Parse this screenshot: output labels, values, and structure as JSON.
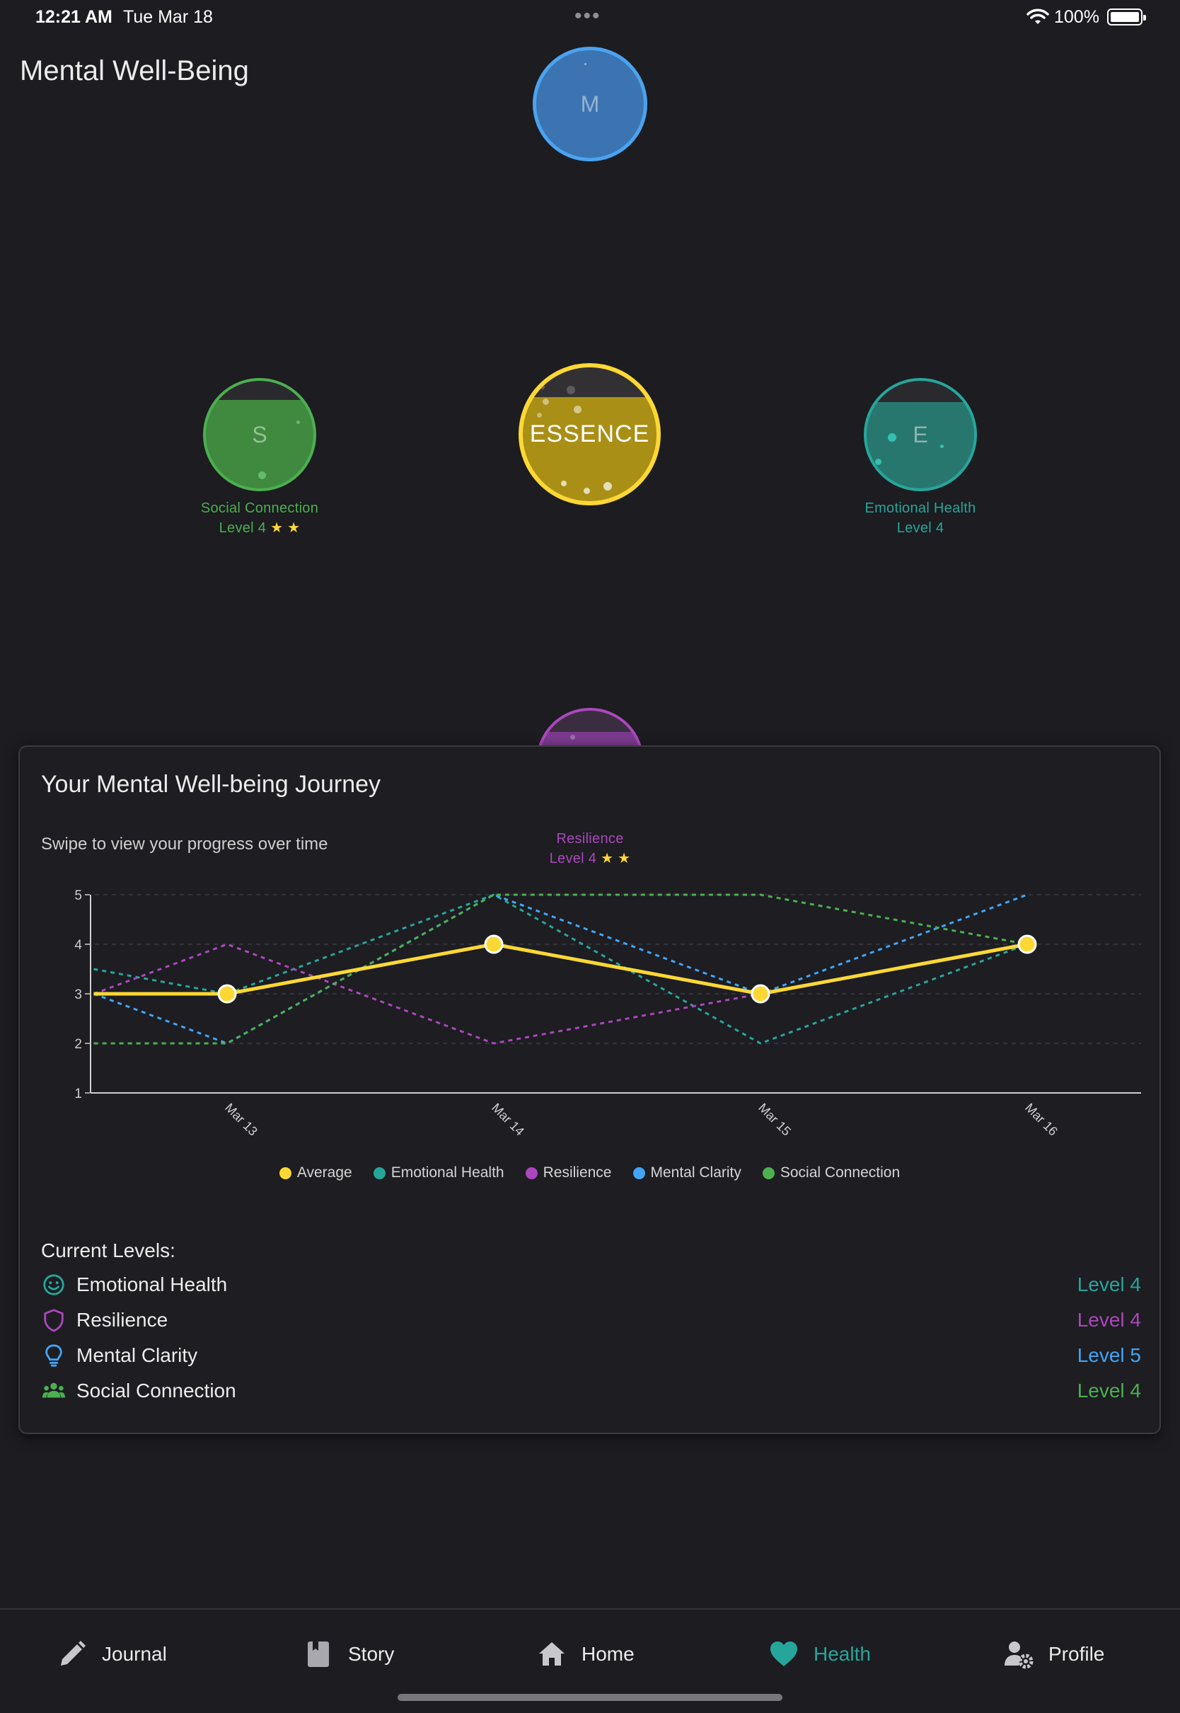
{
  "status_bar": {
    "time": "12:21 AM",
    "date": "Tue Mar 18",
    "battery": "100%"
  },
  "page_title": "Mental Well-Being",
  "orbs": {
    "mental": {
      "letter": "M"
    },
    "social": {
      "letter": "S",
      "name": "Social Connection",
      "level": "Level 4",
      "stars": "★ ★"
    },
    "essence": {
      "letter": "ESSENCE"
    },
    "emotional": {
      "letter": "E",
      "name": "Emotional Health",
      "level": "Level 4"
    },
    "resilience": {
      "name": "Resilience",
      "level": "Level 4",
      "stars": "★ ★"
    }
  },
  "card": {
    "title": "Your Mental Well-being Journey",
    "subtitle": "Swipe to view your progress over time"
  },
  "chart_data": {
    "type": "line",
    "x": [
      "Mar 13",
      "Mar 14",
      "Mar 15",
      "Mar 16"
    ],
    "ylim": [
      1,
      5
    ],
    "yticks": [
      "1",
      "2",
      "3",
      "4",
      "5"
    ],
    "grid": true,
    "legend_position": "bottom",
    "series": [
      {
        "name": "Emotional Health",
        "color": "#26a69a",
        "style": "dashed",
        "points": [
          [
            -0.5,
            3.5
          ],
          [
            0,
            3
          ],
          [
            1,
            5
          ],
          [
            2,
            2
          ],
          [
            3,
            4
          ]
        ]
      },
      {
        "name": "Resilience",
        "color": "#ab47bc",
        "style": "dashed",
        "points": [
          [
            -0.5,
            3
          ],
          [
            0,
            4
          ],
          [
            1,
            2
          ],
          [
            2,
            3
          ],
          [
            3,
            4
          ]
        ]
      },
      {
        "name": "Mental Clarity",
        "color": "#42a5f5",
        "style": "dashed",
        "points": [
          [
            -0.5,
            3
          ],
          [
            0,
            2
          ],
          [
            1,
            5
          ],
          [
            2,
            3
          ],
          [
            3,
            5
          ]
        ]
      },
      {
        "name": "Social Connection",
        "color": "#4caf50",
        "style": "dashed",
        "points": [
          [
            -0.5,
            2
          ],
          [
            0,
            2
          ],
          [
            1,
            5
          ],
          [
            2,
            5
          ],
          [
            3,
            4
          ]
        ]
      },
      {
        "name": "Average",
        "color": "#fdd835",
        "style": "solid",
        "points": [
          [
            -0.5,
            3
          ],
          [
            0,
            3
          ],
          [
            1,
            4
          ],
          [
            2,
            3
          ],
          [
            3,
            4
          ]
        ]
      }
    ],
    "legend": [
      {
        "name": "Average",
        "color": "#fdd835"
      },
      {
        "name": "Emotional Health",
        "color": "#26a69a"
      },
      {
        "name": "Resilience",
        "color": "#ab47bc"
      },
      {
        "name": "Mental Clarity",
        "color": "#42a5f5"
      },
      {
        "name": "Social Connection",
        "color": "#4caf50"
      }
    ]
  },
  "levels": {
    "title": "Current Levels:",
    "items": [
      {
        "name": "Emotional Health",
        "value": "Level 4",
        "color": "#26a69a",
        "icon": "smile-icon"
      },
      {
        "name": "Resilience",
        "value": "Level 4",
        "color": "#ab47bc",
        "icon": "shield-icon"
      },
      {
        "name": "Mental Clarity",
        "value": "Level 5",
        "color": "#42a5f5",
        "icon": "lightbulb-icon"
      },
      {
        "name": "Social Connection",
        "value": "Level 4",
        "color": "#4caf50",
        "icon": "group-icon"
      }
    ]
  },
  "nav": {
    "journal": "Journal",
    "story": "Story",
    "home": "Home",
    "health": "Health",
    "profile": "Profile",
    "active_color": "#26a69a"
  }
}
